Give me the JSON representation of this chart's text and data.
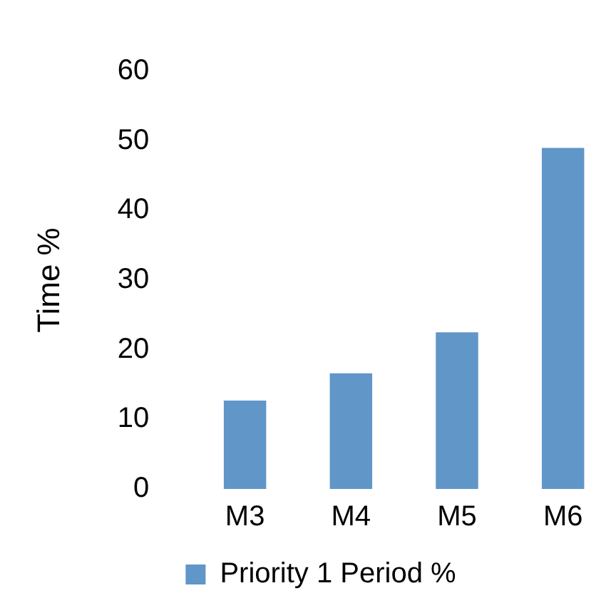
{
  "chart_data": {
    "type": "bar",
    "ylabel": "Time %",
    "categories": [
      "M3",
      "M4",
      "M5",
      "M6"
    ],
    "series": [
      {
        "name": "Priority 1 Period %",
        "color": "#6096c8",
        "values": [
          12.7,
          16.6,
          22.5,
          49.0
        ]
      }
    ],
    "ylim": [
      0,
      60
    ],
    "yticks": [
      0,
      10,
      20,
      30,
      40,
      50,
      60
    ],
    "grid": false,
    "legend": "bottom"
  }
}
